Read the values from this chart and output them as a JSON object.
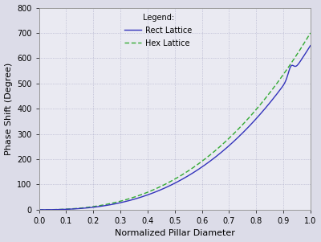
{
  "xlabel": "Normalized Pillar Diameter",
  "ylabel": "Phase Shift (Degree)",
  "xlim": [
    0.0,
    1.0
  ],
  "ylim": [
    0,
    800
  ],
  "yticks": [
    0,
    100,
    200,
    300,
    400,
    500,
    600,
    700,
    800
  ],
  "xticks": [
    0.0,
    0.1,
    0.2,
    0.3,
    0.4,
    0.5,
    0.6,
    0.7,
    0.8,
    0.9,
    1.0
  ],
  "rect_color": "#3333bb",
  "hex_color": "#33aa33",
  "fig_bg": "#dcdce8",
  "ax_bg": "#eaeaf2",
  "legend_title": "Legend:",
  "legend_rect": "Rect Lattice",
  "legend_hex": "Hex Lattice",
  "grid_color": "#9999bb",
  "xlabel_fontsize": 8,
  "ylabel_fontsize": 8,
  "tick_fontsize": 7,
  "legend_fontsize": 7,
  "legend_title_fontsize": 7
}
